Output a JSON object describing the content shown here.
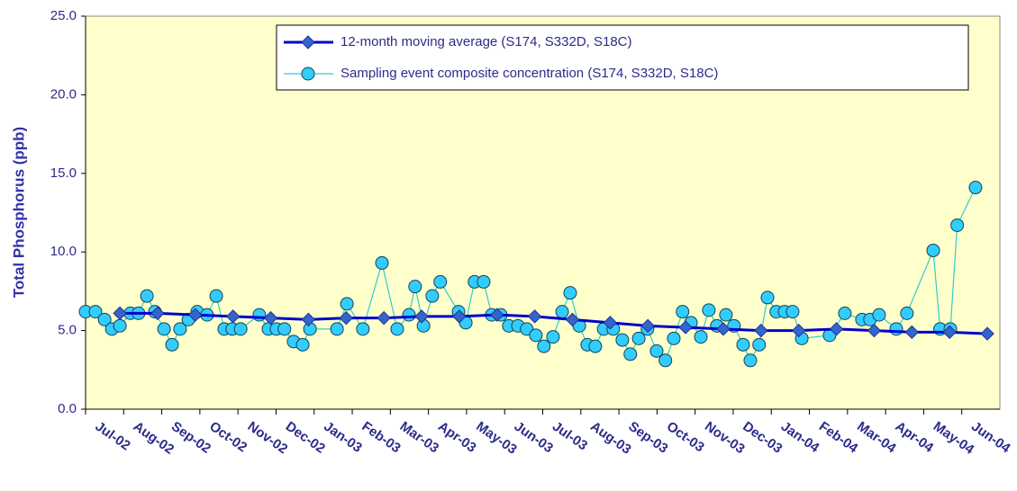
{
  "chart_data": {
    "type": "line",
    "ylabel": "Total Phosphorus (ppb)",
    "xlim": [
      0,
      24
    ],
    "ylim": [
      0,
      25
    ],
    "yticks": [
      {
        "value": 0,
        "label": "0.0"
      },
      {
        "value": 5,
        "label": "5.0"
      },
      {
        "value": 10,
        "label": "10.0"
      },
      {
        "value": 15,
        "label": "15.0"
      },
      {
        "value": 20,
        "label": "20.0"
      },
      {
        "value": 25,
        "label": "25.0"
      }
    ],
    "xticks": [
      {
        "value": 0,
        "label": "Jul-02"
      },
      {
        "value": 1,
        "label": "Aug-02"
      },
      {
        "value": 2,
        "label": "Sep-02"
      },
      {
        "value": 3,
        "label": "Oct-02"
      },
      {
        "value": 4,
        "label": "Nov-02"
      },
      {
        "value": 5,
        "label": "Dec-02"
      },
      {
        "value": 6,
        "label": "Jan-03"
      },
      {
        "value": 7,
        "label": "Feb-03"
      },
      {
        "value": 8,
        "label": "Mar-03"
      },
      {
        "value": 9,
        "label": "Apr-03"
      },
      {
        "value": 10,
        "label": "May-03"
      },
      {
        "value": 11,
        "label": "Jun-03"
      },
      {
        "value": 12,
        "label": "Jul-03"
      },
      {
        "value": 13,
        "label": "Aug-03"
      },
      {
        "value": 14,
        "label": "Sep-03"
      },
      {
        "value": 15,
        "label": "Oct-03"
      },
      {
        "value": 16,
        "label": "Nov-03"
      },
      {
        "value": 17,
        "label": "Dec-03"
      },
      {
        "value": 18,
        "label": "Jan-04"
      },
      {
        "value": 19,
        "label": "Feb-04"
      },
      {
        "value": 20,
        "label": "Mar-04"
      },
      {
        "value": 21,
        "label": "Apr-04"
      },
      {
        "value": 22,
        "label": "May-04"
      },
      {
        "value": 23,
        "label": "Jun-04"
      }
    ],
    "background": "#ffffcc",
    "series": [
      {
        "name": "12-month moving average (S174, S332D, S18C)",
        "color": "#0000cc",
        "marker": "diamond",
        "marker_color": "#3366cc",
        "x": [
          0.9,
          1.89,
          2.88,
          3.87,
          4.86,
          5.85,
          6.84,
          7.83,
          8.82,
          9.81,
          10.8,
          11.79,
          12.78,
          13.77,
          14.76,
          15.75,
          16.74,
          17.73,
          18.72,
          19.71,
          20.7,
          21.69,
          22.68,
          23.67
        ],
        "values": [
          6.1,
          6.1,
          6.0,
          5.9,
          5.8,
          5.7,
          5.8,
          5.8,
          5.9,
          5.9,
          6.0,
          5.9,
          5.7,
          5.5,
          5.3,
          5.2,
          5.1,
          5.0,
          5.0,
          5.1,
          5.0,
          4.9,
          4.9,
          4.8
        ]
      },
      {
        "name": "Sampling event composite concentration (S174, S332D, S18C)",
        "color": "#33cccc",
        "marker": "circle",
        "marker_color": "#33ccff",
        "x": [
          0,
          0.26,
          0.5,
          0.69,
          0.9,
          1.18,
          1.39,
          1.61,
          1.82,
          2.06,
          2.27,
          2.48,
          2.7,
          2.93,
          3.19,
          3.43,
          3.64,
          3.85,
          4.07,
          4.56,
          4.8,
          5.01,
          5.22,
          5.46,
          5.7,
          5.89,
          6.6,
          6.86,
          7.28,
          7.78,
          8.18,
          8.49,
          8.65,
          8.87,
          9.1,
          9.31,
          9.79,
          9.98,
          10.21,
          10.45,
          10.66,
          10.9,
          11.11,
          11.35,
          11.58,
          11.82,
          12.03,
          12.27,
          12.51,
          12.72,
          12.96,
          13.17,
          13.38,
          13.6,
          13.85,
          14.09,
          14.3,
          14.52,
          14.75,
          14.99,
          15.22,
          15.44,
          15.67,
          15.89,
          16.15,
          16.36,
          16.57,
          16.81,
          17.02,
          17.26,
          17.45,
          17.68,
          17.9,
          18.13,
          18.35,
          18.56,
          18.8,
          19.53,
          19.93,
          20.38,
          20.59,
          20.83,
          21.28,
          21.56,
          22.25,
          22.43,
          22.7,
          22.88,
          23.36
        ],
        "values": [
          6.2,
          6.2,
          5.7,
          5.1,
          5.3,
          6.1,
          6.1,
          7.2,
          6.2,
          5.1,
          4.1,
          5.1,
          5.7,
          6.2,
          6.0,
          7.2,
          5.1,
          5.1,
          5.1,
          6.0,
          5.1,
          5.1,
          5.1,
          4.3,
          4.1,
          5.1,
          5.1,
          6.7,
          5.1,
          9.3,
          5.1,
          6.0,
          7.8,
          5.3,
          7.2,
          8.1,
          6.2,
          5.5,
          8.1,
          8.1,
          6.0,
          6.0,
          5.3,
          5.3,
          5.1,
          4.7,
          4.0,
          4.6,
          6.2,
          7.4,
          5.3,
          4.1,
          4.0,
          5.1,
          5.1,
          4.4,
          3.5,
          4.5,
          5.1,
          3.7,
          3.1,
          4.5,
          6.2,
          5.5,
          4.6,
          6.3,
          5.3,
          6.0,
          5.3,
          4.1,
          3.1,
          4.1,
          7.1,
          6.2,
          6.2,
          6.2,
          4.5,
          4.7,
          6.1,
          5.7,
          5.7,
          6.0,
          5.1,
          6.1,
          10.1,
          5.1,
          5.1,
          11.7,
          14.1
        ]
      }
    ]
  }
}
